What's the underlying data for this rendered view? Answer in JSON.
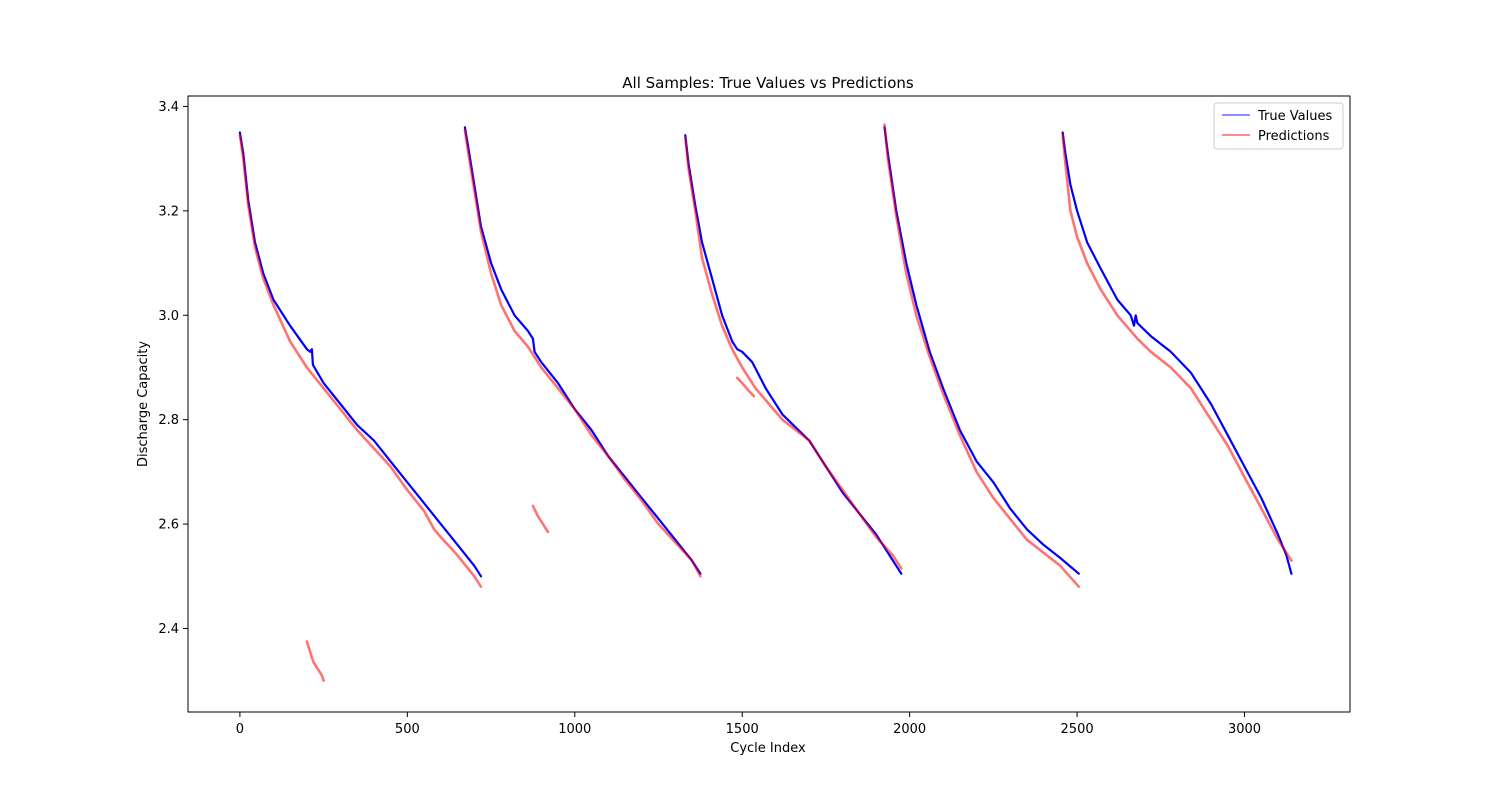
{
  "chart_data": {
    "type": "line",
    "title": "All Samples: True Values vs Predictions",
    "xlabel": "Cycle Index",
    "ylabel": "Discharge Capacity",
    "xlim": [
      -155,
      3315
    ],
    "ylim": [
      2.24,
      3.42
    ],
    "xticks": [
      0,
      500,
      1000,
      1500,
      2000,
      2500,
      3000
    ],
    "yticks": [
      2.4,
      2.6,
      2.8,
      3.0,
      3.2,
      3.4
    ],
    "xtick_labels": [
      "0",
      "500",
      "1000",
      "1500",
      "2000",
      "2500",
      "3000"
    ],
    "ytick_labels": [
      "2.4",
      "2.6",
      "2.8",
      "3.0",
      "3.2",
      "3.4"
    ],
    "grid": false,
    "legend_position": "top-right",
    "series": [
      {
        "name": "True Values",
        "color": "#0000ff",
        "segments": [
          [
            [
              0,
              3.35
            ],
            [
              10,
              3.31
            ],
            [
              25,
              3.22
            ],
            [
              45,
              3.14
            ],
            [
              70,
              3.08
            ],
            [
              100,
              3.03
            ],
            [
              150,
              2.98
            ],
            [
              200,
              2.935
            ],
            [
              210,
              2.93
            ],
            [
              215,
              2.935
            ],
            [
              218,
              2.905
            ],
            [
              250,
              2.87
            ],
            [
              300,
              2.83
            ],
            [
              350,
              2.79
            ],
            [
              400,
              2.76
            ],
            [
              450,
              2.72
            ],
            [
              500,
              2.68
            ],
            [
              550,
              2.64
            ],
            [
              600,
              2.6
            ],
            [
              650,
              2.56
            ],
            [
              700,
              2.52
            ],
            [
              720,
              2.5
            ]
          ],
          [
            [
              672,
              3.36
            ],
            [
              680,
              3.33
            ],
            [
              700,
              3.25
            ],
            [
              720,
              3.17
            ],
            [
              750,
              3.1
            ],
            [
              780,
              3.05
            ],
            [
              820,
              3.0
            ],
            [
              860,
              2.97
            ],
            [
              875,
              2.955
            ],
            [
              880,
              2.93
            ],
            [
              900,
              2.91
            ],
            [
              950,
              2.87
            ],
            [
              1000,
              2.82
            ],
            [
              1050,
              2.78
            ],
            [
              1100,
              2.73
            ],
            [
              1150,
              2.69
            ],
            [
              1200,
              2.65
            ],
            [
              1250,
              2.61
            ],
            [
              1300,
              2.57
            ],
            [
              1350,
              2.53
            ],
            [
              1375,
              2.505
            ]
          ],
          [
            [
              1330,
              3.345
            ],
            [
              1340,
              3.29
            ],
            [
              1360,
              3.21
            ],
            [
              1380,
              3.14
            ],
            [
              1410,
              3.07
            ],
            [
              1440,
              3.0
            ],
            [
              1470,
              2.95
            ],
            [
              1485,
              2.935
            ],
            [
              1500,
              2.93
            ],
            [
              1530,
              2.91
            ],
            [
              1570,
              2.86
            ],
            [
              1620,
              2.81
            ],
            [
              1700,
              2.76
            ],
            [
              1750,
              2.71
            ],
            [
              1800,
              2.66
            ],
            [
              1850,
              2.62
            ],
            [
              1900,
              2.58
            ],
            [
              1940,
              2.54
            ],
            [
              1975,
              2.505
            ]
          ],
          [
            [
              1925,
              3.36
            ],
            [
              1935,
              3.31
            ],
            [
              1960,
              3.2
            ],
            [
              1990,
              3.1
            ],
            [
              2020,
              3.02
            ],
            [
              2060,
              2.93
            ],
            [
              2100,
              2.86
            ],
            [
              2150,
              2.78
            ],
            [
              2200,
              2.72
            ],
            [
              2250,
              2.68
            ],
            [
              2300,
              2.63
            ],
            [
              2350,
              2.59
            ],
            [
              2400,
              2.56
            ],
            [
              2450,
              2.535
            ],
            [
              2505,
              2.505
            ]
          ],
          [
            [
              2457,
              3.35
            ],
            [
              2465,
              3.31
            ],
            [
              2480,
              3.25
            ],
            [
              2500,
              3.2
            ],
            [
              2530,
              3.14
            ],
            [
              2570,
              3.09
            ],
            [
              2620,
              3.03
            ],
            [
              2660,
              3.0
            ],
            [
              2670,
              2.98
            ],
            [
              2675,
              3.0
            ],
            [
              2680,
              2.985
            ],
            [
              2720,
              2.96
            ],
            [
              2780,
              2.93
            ],
            [
              2840,
              2.89
            ],
            [
              2900,
              2.83
            ],
            [
              2950,
              2.77
            ],
            [
              3000,
              2.71
            ],
            [
              3050,
              2.65
            ],
            [
              3100,
              2.58
            ],
            [
              3125,
              2.54
            ],
            [
              3140,
              2.505
            ]
          ]
        ]
      },
      {
        "name": "Predictions",
        "color": "#ff0000",
        "segments": [
          [
            [
              0,
              3.345
            ],
            [
              10,
              3.3
            ],
            [
              25,
              3.21
            ],
            [
              45,
              3.13
            ],
            [
              70,
              3.07
            ],
            [
              100,
              3.02
            ],
            [
              150,
              2.95
            ],
            [
              200,
              2.9
            ],
            [
              250,
              2.86
            ],
            [
              300,
              2.82
            ],
            [
              350,
              2.78
            ],
            [
              400,
              2.745
            ],
            [
              450,
              2.71
            ],
            [
              500,
              2.665
            ],
            [
              550,
              2.625
            ],
            [
              580,
              2.59
            ],
            [
              600,
              2.575
            ],
            [
              650,
              2.54
            ],
            [
              700,
              2.5
            ],
            [
              720,
              2.48
            ]
          ],
          [
            [
              672,
              3.355
            ],
            [
              680,
              3.32
            ],
            [
              700,
              3.24
            ],
            [
              720,
              3.16
            ],
            [
              750,
              3.08
            ],
            [
              780,
              3.02
            ],
            [
              820,
              2.97
            ],
            [
              860,
              2.94
            ],
            [
              900,
              2.9
            ],
            [
              950,
              2.86
            ],
            [
              1000,
              2.82
            ],
            [
              1050,
              2.77
            ],
            [
              1100,
              2.73
            ],
            [
              1150,
              2.685
            ],
            [
              1200,
              2.645
            ],
            [
              1250,
              2.6
            ],
            [
              1300,
              2.565
            ],
            [
              1350,
              2.53
            ],
            [
              1375,
              2.5
            ]
          ],
          [
            [
              1330,
              3.34
            ],
            [
              1340,
              3.28
            ],
            [
              1360,
              3.2
            ],
            [
              1380,
              3.11
            ],
            [
              1410,
              3.04
            ],
            [
              1440,
              2.98
            ],
            [
              1470,
              2.935
            ],
            [
              1500,
              2.9
            ],
            [
              1540,
              2.86
            ],
            [
              1580,
              2.83
            ],
            [
              1620,
              2.8
            ],
            [
              1700,
              2.76
            ],
            [
              1750,
              2.71
            ],
            [
              1800,
              2.665
            ],
            [
              1850,
              2.62
            ],
            [
              1900,
              2.575
            ],
            [
              1950,
              2.54
            ],
            [
              1975,
              2.515
            ]
          ],
          [
            [
              1925,
              3.365
            ],
            [
              1935,
              3.3
            ],
            [
              1960,
              3.19
            ],
            [
              1990,
              3.08
            ],
            [
              2020,
              3.0
            ],
            [
              2060,
              2.92
            ],
            [
              2100,
              2.85
            ],
            [
              2150,
              2.77
            ],
            [
              2200,
              2.7
            ],
            [
              2250,
              2.65
            ],
            [
              2300,
              2.61
            ],
            [
              2350,
              2.57
            ],
            [
              2400,
              2.545
            ],
            [
              2450,
              2.52
            ],
            [
              2505,
              2.48
            ]
          ],
          [
            [
              2457,
              3.345
            ],
            [
              2465,
              3.29
            ],
            [
              2480,
              3.2
            ],
            [
              2500,
              3.15
            ],
            [
              2530,
              3.1
            ],
            [
              2570,
              3.05
            ],
            [
              2620,
              3.0
            ],
            [
              2680,
              2.955
            ],
            [
              2720,
              2.93
            ],
            [
              2780,
              2.9
            ],
            [
              2840,
              2.86
            ],
            [
              2900,
              2.8
            ],
            [
              2950,
              2.75
            ],
            [
              3000,
              2.69
            ],
            [
              3050,
              2.63
            ],
            [
              3100,
              2.57
            ],
            [
              3140,
              2.53
            ]
          ],
          [
            [
              200,
              2.375
            ],
            [
              210,
              2.355
            ],
            [
              220,
              2.335
            ],
            [
              235,
              2.32
            ],
            [
              245,
              2.31
            ],
            [
              250,
              2.3
            ]
          ],
          [
            [
              875,
              2.635
            ],
            [
              890,
              2.615
            ],
            [
              905,
              2.6
            ],
            [
              920,
              2.585
            ]
          ],
          [
            [
              1485,
              2.88
            ],
            [
              1500,
              2.87
            ],
            [
              1520,
              2.855
            ],
            [
              1535,
              2.845
            ]
          ]
        ]
      }
    ]
  }
}
